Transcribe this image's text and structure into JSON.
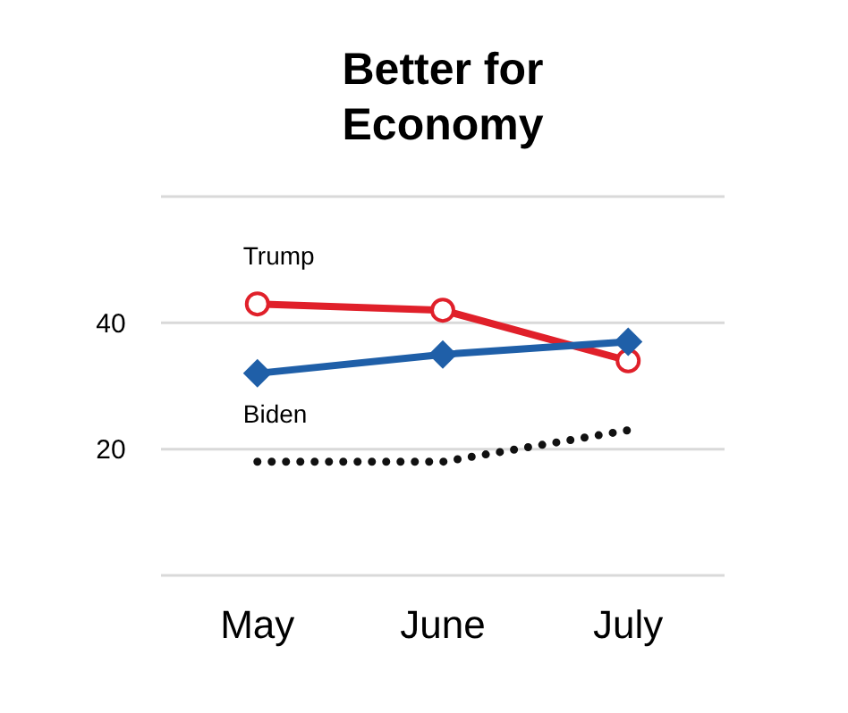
{
  "chart_data": {
    "type": "line",
    "title": "Better for Economy",
    "categories": [
      "May",
      "June",
      "July"
    ],
    "ylim": [
      0,
      60
    ],
    "yticks": [
      {
        "value": 0,
        "label": null
      },
      20,
      40,
      {
        "value": 60,
        "label": null
      }
    ],
    "grid": "y",
    "series": [
      {
        "name": "Trump",
        "color": "#e0202a",
        "values": [
          43,
          42,
          34
        ],
        "marker": "circle",
        "line_style": "solid"
      },
      {
        "color": "#1f5fa8",
        "values": [
          32,
          35,
          37
        ],
        "marker": "diamond",
        "line_style": "solid"
      },
      {
        "name": "Biden",
        "color": "#111111",
        "values": [
          18,
          18,
          23
        ],
        "marker": "none",
        "line_style": "dotted"
      }
    ]
  }
}
